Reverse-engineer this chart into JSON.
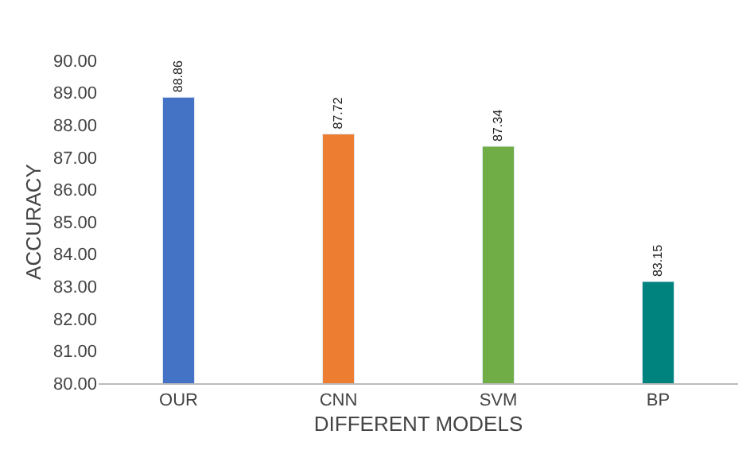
{
  "chart_data": {
    "type": "bar",
    "xlabel": "DIFFERENT MODELS",
    "ylabel": "ACCURACY",
    "categories": [
      "OUR",
      "CNN",
      "SVM",
      "BP"
    ],
    "values": [
      88.86,
      87.72,
      87.34,
      83.15
    ],
    "colors": [
      "#4472c4",
      "#ed7d31",
      "#70ad47",
      "#00827f"
    ],
    "ylim": [
      80,
      90
    ],
    "yticks": [
      {
        "value": 80,
        "label": "80.00"
      },
      {
        "value": 81,
        "label": "81.00"
      },
      {
        "value": 82,
        "label": "82.00"
      },
      {
        "value": 83,
        "label": "83.00"
      },
      {
        "value": 84,
        "label": "84.00"
      },
      {
        "value": 85,
        "label": "85.00"
      },
      {
        "value": 86,
        "label": "86.00"
      },
      {
        "value": 87,
        "label": "87.00"
      },
      {
        "value": 88,
        "label": "88.00"
      },
      {
        "value": 89,
        "label": "89.00"
      },
      {
        "value": 90,
        "label": "90.00"
      }
    ],
    "data_labels": true,
    "legend": false
  }
}
